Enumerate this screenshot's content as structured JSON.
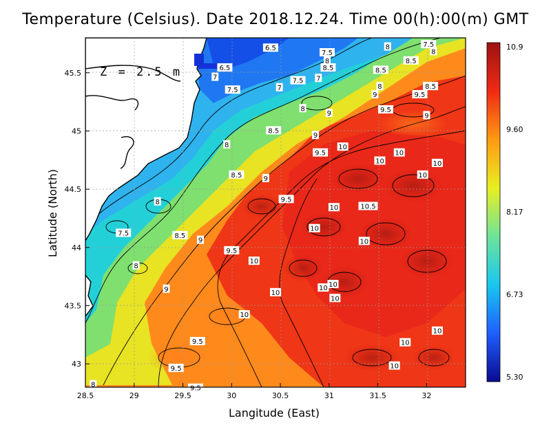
{
  "title": "Temperature (Celsius). Date 2018.12.24. Time 00(h):00(m)  GMT",
  "depth_label": "Z  =  2.5  m",
  "xlabel": "Langitude (East)",
  "ylabel": "Latitude (North)",
  "x_ticks": [
    "28.5",
    "29",
    "29.5",
    "30",
    "30.5",
    "31",
    "31.5",
    "32"
  ],
  "y_ticks": [
    "43",
    "43.5",
    "44",
    "44.5",
    "45",
    "45.5"
  ],
  "colorbar": {
    "labels": [
      "10.9",
      "9.60",
      "8.17",
      "6.73",
      "5.30"
    ],
    "min": 5.3,
    "max": 10.9,
    "colors": [
      "#0a0a8f",
      "#1f5fff",
      "#19c7f0",
      "#6fe39a",
      "#e8ef22",
      "#ff9a13",
      "#f02a14",
      "#9e1212"
    ]
  },
  "chart_data": {
    "type": "heatmap",
    "title": "Temperature (Celsius). Date 2018.12.24. Time 00(h):00(m)  GMT",
    "xlabel": "Langitude (East)",
    "ylabel": "Latitude (North)",
    "xlim": [
      28.5,
      32.4
    ],
    "ylim": [
      42.8,
      45.8
    ],
    "value_range": [
      5.3,
      10.9
    ],
    "contour_labels": [
      {
        "text": "6.5",
        "lon": 30.4,
        "lat": 45.71
      },
      {
        "text": "7.5",
        "lon": 30.98,
        "lat": 45.67
      },
      {
        "text": "8",
        "lon": 31.6,
        "lat": 45.72
      },
      {
        "text": "7.5",
        "lon": 32.02,
        "lat": 45.74
      },
      {
        "text": "8.5",
        "lon": 31.84,
        "lat": 45.6
      },
      {
        "text": "8",
        "lon": 32.07,
        "lat": 45.68
      },
      {
        "text": "8",
        "lon": 30.98,
        "lat": 45.6
      },
      {
        "text": "8.5",
        "lon": 30.99,
        "lat": 45.54
      },
      {
        "text": "6.5",
        "lon": 29.93,
        "lat": 45.54
      },
      {
        "text": "7",
        "lon": 29.83,
        "lat": 45.46
      },
      {
        "text": "7.5",
        "lon": 30.01,
        "lat": 45.35
      },
      {
        "text": "7",
        "lon": 30.49,
        "lat": 45.37
      },
      {
        "text": "7.5",
        "lon": 30.68,
        "lat": 45.43
      },
      {
        "text": "7",
        "lon": 30.89,
        "lat": 45.45
      },
      {
        "text": "8.5",
        "lon": 31.53,
        "lat": 45.52
      },
      {
        "text": "8",
        "lon": 31.52,
        "lat": 45.38
      },
      {
        "text": "9",
        "lon": 31.47,
        "lat": 45.31
      },
      {
        "text": "8.5",
        "lon": 32.04,
        "lat": 45.38
      },
      {
        "text": "9.5",
        "lon": 31.93,
        "lat": 45.31
      },
      {
        "text": "8",
        "lon": 30.73,
        "lat": 45.19
      },
      {
        "text": "9",
        "lon": 31.0,
        "lat": 45.15
      },
      {
        "text": "9.5",
        "lon": 31.58,
        "lat": 45.18
      },
      {
        "text": "9",
        "lon": 32.0,
        "lat": 45.13
      },
      {
        "text": "8.5",
        "lon": 30.43,
        "lat": 45.0
      },
      {
        "text": "9",
        "lon": 30.86,
        "lat": 44.96
      },
      {
        "text": "8",
        "lon": 29.95,
        "lat": 44.88
      },
      {
        "text": "9.5",
        "lon": 30.91,
        "lat": 44.81
      },
      {
        "text": "10",
        "lon": 31.14,
        "lat": 44.86
      },
      {
        "text": "10",
        "lon": 31.72,
        "lat": 44.81
      },
      {
        "text": "10",
        "lon": 31.52,
        "lat": 44.74
      },
      {
        "text": "10",
        "lon": 32.11,
        "lat": 44.72
      },
      {
        "text": "8.5",
        "lon": 30.05,
        "lat": 44.62
      },
      {
        "text": "9",
        "lon": 30.35,
        "lat": 44.59
      },
      {
        "text": "10",
        "lon": 31.96,
        "lat": 44.62
      },
      {
        "text": "8",
        "lon": 29.24,
        "lat": 44.39
      },
      {
        "text": "9.5",
        "lon": 30.56,
        "lat": 44.41
      },
      {
        "text": "10",
        "lon": 31.05,
        "lat": 44.34
      },
      {
        "text": "10.5",
        "lon": 31.4,
        "lat": 44.35
      },
      {
        "text": "8.5",
        "lon": 29.47,
        "lat": 44.1
      },
      {
        "text": "9",
        "lon": 29.68,
        "lat": 44.06
      },
      {
        "text": "10",
        "lon": 30.85,
        "lat": 44.16
      },
      {
        "text": "7.5",
        "lon": 28.89,
        "lat": 44.12
      },
      {
        "text": "10",
        "lon": 31.36,
        "lat": 44.05
      },
      {
        "text": "9.5",
        "lon": 30.0,
        "lat": 43.97
      },
      {
        "text": "10",
        "lon": 30.23,
        "lat": 43.88
      },
      {
        "text": "8",
        "lon": 29.02,
        "lat": 43.84
      },
      {
        "text": "9",
        "lon": 29.33,
        "lat": 43.64
      },
      {
        "text": "10",
        "lon": 30.94,
        "lat": 43.65
      },
      {
        "text": "10",
        "lon": 31.04,
        "lat": 43.68
      },
      {
        "text": "10",
        "lon": 30.45,
        "lat": 43.61
      },
      {
        "text": "10",
        "lon": 31.06,
        "lat": 43.56
      },
      {
        "text": "10",
        "lon": 30.13,
        "lat": 43.42
      },
      {
        "text": "10",
        "lon": 32.11,
        "lat": 43.28
      },
      {
        "text": "9.5",
        "lon": 29.65,
        "lat": 43.19
      },
      {
        "text": "10",
        "lon": 31.78,
        "lat": 43.18
      },
      {
        "text": "9.5",
        "lon": 29.43,
        "lat": 42.96
      },
      {
        "text": "10",
        "lon": 31.67,
        "lat": 42.98
      },
      {
        "text": "8",
        "lon": 28.58,
        "lat": 42.82
      },
      {
        "text": "9.5",
        "lon": 29.63,
        "lat": 42.79
      }
    ]
  }
}
